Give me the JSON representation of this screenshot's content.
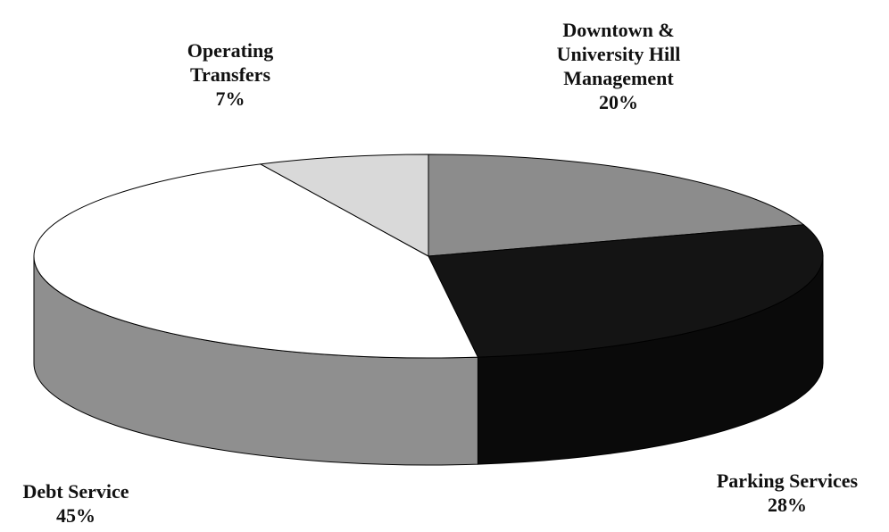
{
  "chart_data": {
    "type": "pie",
    "three_d": true,
    "categories": [
      "Downtown & University Hill Management",
      "Parking Services",
      "Debt Service",
      "Operating Transfers"
    ],
    "values": [
      20,
      28,
      45,
      7
    ],
    "value_labels": [
      "20%",
      "28%",
      "45%",
      "7%"
    ],
    "colors": [
      "#8c8c8c",
      "#141414",
      "#ffffff",
      "#d9d9d9"
    ],
    "side_colors": [
      "#7a7a7a",
      "#0a0a0a",
      "#8f8f8f",
      "#c4c4c4"
    ],
    "start_angle": -90,
    "direction": "clockwise"
  }
}
